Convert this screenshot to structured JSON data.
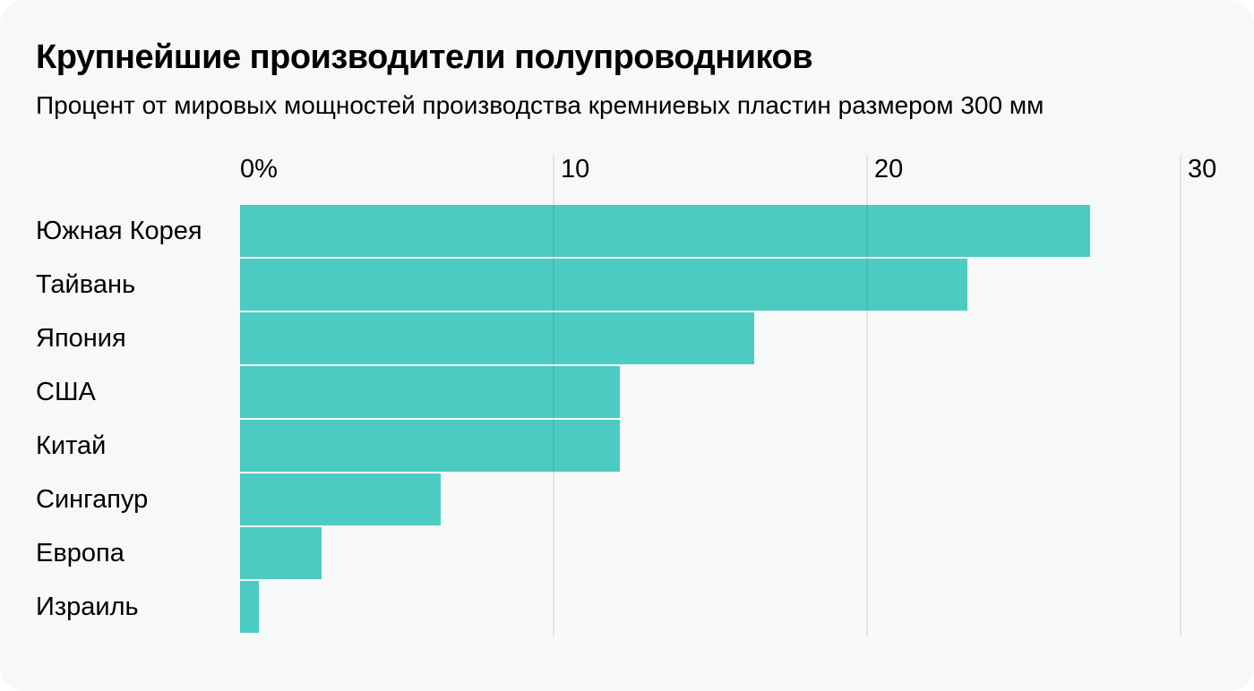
{
  "header": {
    "title": "Крупнейшие производители полупроводников",
    "subtitle": "Процент от мировых мощностей производства кремниевых пластин размером 300 мм"
  },
  "chart_data": {
    "type": "bar",
    "orientation": "horizontal",
    "title": "Крупнейшие производители полупроводников",
    "subtitle": "Процент от мировых мощностей производства кремниевых пластин размером 300 мм",
    "categories": [
      "Южная Корея",
      "Тайвань",
      "Япония",
      "США",
      "Китай",
      "Сингапур",
      "Европа",
      "Израиль"
    ],
    "values": [
      27.1,
      23.2,
      16.4,
      12.1,
      12.1,
      6.4,
      2.6,
      0.6
    ],
    "unit": "%",
    "xlabel": "",
    "ylabel": "",
    "xlim": [
      0,
      30
    ],
    "ticks": [
      {
        "value": 0,
        "label": "0%"
      },
      {
        "value": 10,
        "label": "10"
      },
      {
        "value": 20,
        "label": "20"
      },
      {
        "value": 30,
        "label": "30"
      }
    ],
    "grid": true,
    "legend": false,
    "colors": {
      "bar": "#4CCBC2",
      "gridline": "rgba(0,0,0,0.08)",
      "text": "#000000",
      "card_background": "#f7f8f8",
      "page_background": "#ffffff"
    }
  }
}
